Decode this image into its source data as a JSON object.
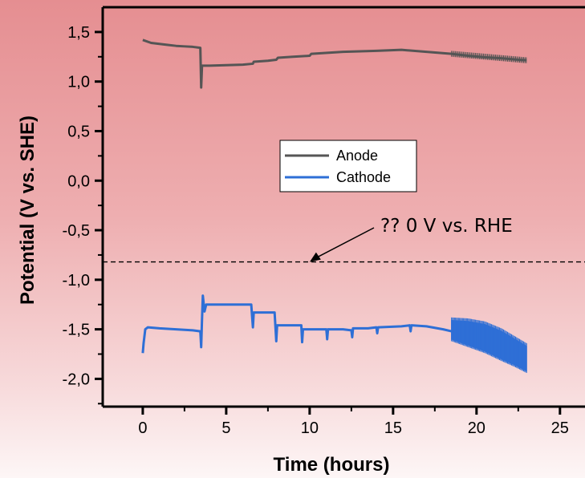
{
  "chart_data": {
    "type": "line",
    "xlabel": "Time (hours)",
    "ylabel": "Potential (V vs. SHE)",
    "xlim": [
      -2.4,
      26.5
    ],
    "ylim": [
      -2.28,
      1.75
    ],
    "x_ticks": [
      0,
      5,
      10,
      15,
      20,
      25
    ],
    "x_tick_labels": [
      "0",
      "5",
      "10",
      "15",
      "20",
      "25"
    ],
    "y_ticks": [
      1.5,
      1.0,
      0.5,
      0.0,
      -0.5,
      -1.0,
      -1.5,
      -2.0
    ],
    "y_tick_labels": [
      "1,5",
      "1,0",
      "0,5",
      "0,0",
      "-0,5",
      "-1,0",
      "-1,5",
      "-2,0"
    ],
    "legend_position": "center",
    "series": [
      {
        "name": "Anode",
        "color": "#555555",
        "points": [
          [
            0.0,
            1.42
          ],
          [
            0.5,
            1.39
          ],
          [
            1.0,
            1.38
          ],
          [
            1.5,
            1.37
          ],
          [
            2.0,
            1.36
          ],
          [
            2.5,
            1.355
          ],
          [
            3.0,
            1.35
          ],
          [
            3.45,
            1.34
          ],
          [
            3.5,
            0.94
          ],
          [
            3.55,
            1.16
          ],
          [
            4.0,
            1.16
          ],
          [
            5.0,
            1.165
          ],
          [
            6.0,
            1.17
          ],
          [
            6.6,
            1.18
          ],
          [
            6.65,
            1.2
          ],
          [
            7.5,
            1.21
          ],
          [
            8.0,
            1.22
          ],
          [
            8.1,
            1.24
          ],
          [
            9.0,
            1.25
          ],
          [
            10.0,
            1.26
          ],
          [
            10.1,
            1.28
          ],
          [
            12.0,
            1.3
          ],
          [
            14.0,
            1.31
          ],
          [
            15.5,
            1.32
          ],
          [
            17.0,
            1.3
          ],
          [
            18.5,
            1.28
          ],
          [
            19.5,
            1.26
          ],
          [
            20.5,
            1.245
          ],
          [
            21.5,
            1.235
          ],
          [
            22.5,
            1.22
          ],
          [
            23.0,
            1.215
          ]
        ]
      },
      {
        "name": "Cathode",
        "color": "#2e6fd6",
        "points": [
          [
            0.0,
            -1.74
          ],
          [
            0.05,
            -1.64
          ],
          [
            0.15,
            -1.5
          ],
          [
            0.3,
            -1.48
          ],
          [
            1.0,
            -1.49
          ],
          [
            2.0,
            -1.5
          ],
          [
            3.0,
            -1.51
          ],
          [
            3.45,
            -1.52
          ],
          [
            3.5,
            -1.68
          ],
          [
            3.55,
            -1.4
          ],
          [
            3.6,
            -1.16
          ],
          [
            3.7,
            -1.32
          ],
          [
            3.8,
            -1.25
          ],
          [
            5.0,
            -1.25
          ],
          [
            6.5,
            -1.25
          ],
          [
            6.6,
            -1.48
          ],
          [
            6.65,
            -1.33
          ],
          [
            7.0,
            -1.33
          ],
          [
            7.9,
            -1.33
          ],
          [
            8.0,
            -1.62
          ],
          [
            8.05,
            -1.46
          ],
          [
            9.0,
            -1.46
          ],
          [
            9.5,
            -1.46
          ],
          [
            9.55,
            -1.63
          ],
          [
            9.6,
            -1.5
          ],
          [
            10.5,
            -1.5
          ],
          [
            11.0,
            -1.5
          ],
          [
            11.05,
            -1.6
          ],
          [
            11.1,
            -1.5
          ],
          [
            12.0,
            -1.5
          ],
          [
            12.5,
            -1.51
          ],
          [
            12.55,
            -1.58
          ],
          [
            12.6,
            -1.49
          ],
          [
            13.5,
            -1.49
          ],
          [
            14.0,
            -1.48
          ],
          [
            14.05,
            -1.54
          ],
          [
            14.1,
            -1.48
          ],
          [
            15.5,
            -1.47
          ],
          [
            16.0,
            -1.46
          ],
          [
            16.05,
            -1.52
          ],
          [
            16.1,
            -1.46
          ],
          [
            17.0,
            -1.47
          ],
          [
            18.0,
            -1.5
          ],
          [
            18.5,
            -1.52
          ]
        ],
        "noisy_segment": {
          "x_range": [
            18.5,
            23.0
          ],
          "upper": [
            [
              18.5,
              -1.41
            ],
            [
              19.5,
              -1.42
            ],
            [
              20.5,
              -1.45
            ],
            [
              21.5,
              -1.52
            ],
            [
              22.3,
              -1.6
            ],
            [
              23.0,
              -1.67
            ]
          ],
          "lower": [
            [
              18.5,
              -1.6
            ],
            [
              19.5,
              -1.66
            ],
            [
              20.5,
              -1.72
            ],
            [
              21.5,
              -1.8
            ],
            [
              22.3,
              -1.86
            ],
            [
              23.0,
              -1.92
            ]
          ]
        }
      }
    ],
    "reference_line": {
      "y": -0.82,
      "style": "dashed",
      "color": "#000000"
    },
    "annotation": {
      "text": "?? 0 V vs. RHE",
      "points_to": [
        10.0,
        -0.82
      ]
    }
  }
}
